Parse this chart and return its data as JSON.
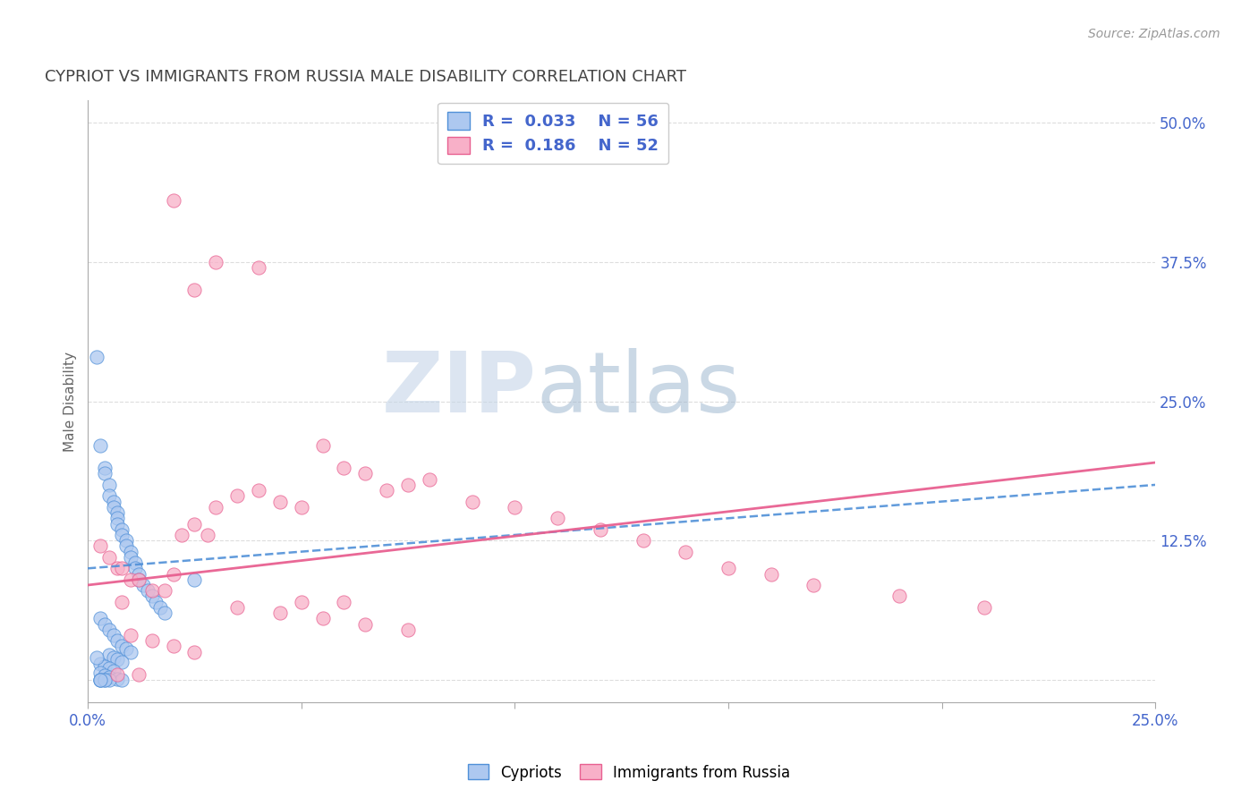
{
  "title": "CYPRIOT VS IMMIGRANTS FROM RUSSIA MALE DISABILITY CORRELATION CHART",
  "source": "Source: ZipAtlas.com",
  "ylabel": "Male Disability",
  "xlim": [
    0.0,
    0.25
  ],
  "ylim": [
    -0.02,
    0.52
  ],
  "xtick_positions": [
    0.0,
    0.05,
    0.1,
    0.15,
    0.2,
    0.25
  ],
  "xtick_labels": [
    "0.0%",
    "",
    "",
    "",
    "",
    "25.0%"
  ],
  "ytick_positions": [
    0.0,
    0.125,
    0.25,
    0.375,
    0.5
  ],
  "ytick_labels": [
    "",
    "12.5%",
    "25.0%",
    "37.5%",
    "50.0%"
  ],
  "legend_r1": "R =  0.033",
  "legend_n1": "N = 56",
  "legend_r2": "R =  0.186",
  "legend_n2": "N = 52",
  "color_cypriot_fill": "#adc8f0",
  "color_cypriot_edge": "#5090d8",
  "color_russia_fill": "#f8b0c8",
  "color_russia_edge": "#e86090",
  "color_line_cypriot": "#5090d8",
  "color_line_russia": "#e86090",
  "color_text_blue": "#4466cc",
  "color_title": "#444444",
  "color_source": "#999999",
  "background": "#ffffff",
  "watermark_zip": "ZIP",
  "watermark_atlas": "atlas",
  "grid_color": "#dddddd",
  "cypriot_x": [
    0.002,
    0.003,
    0.004,
    0.004,
    0.005,
    0.005,
    0.006,
    0.006,
    0.007,
    0.007,
    0.007,
    0.008,
    0.008,
    0.009,
    0.009,
    0.01,
    0.01,
    0.011,
    0.011,
    0.012,
    0.012,
    0.013,
    0.014,
    0.015,
    0.016,
    0.017,
    0.018,
    0.003,
    0.004,
    0.005,
    0.006,
    0.007,
    0.008,
    0.009,
    0.01,
    0.005,
    0.006,
    0.007,
    0.008,
    0.003,
    0.004,
    0.005,
    0.006,
    0.003,
    0.004,
    0.005,
    0.007,
    0.008,
    0.003,
    0.004,
    0.005,
    0.003,
    0.004,
    0.003,
    0.025,
    0.002
  ],
  "cypriot_y": [
    0.29,
    0.21,
    0.19,
    0.185,
    0.175,
    0.165,
    0.16,
    0.155,
    0.15,
    0.145,
    0.14,
    0.135,
    0.13,
    0.125,
    0.12,
    0.115,
    0.11,
    0.105,
    0.1,
    0.095,
    0.09,
    0.085,
    0.08,
    0.075,
    0.07,
    0.065,
    0.06,
    0.055,
    0.05,
    0.045,
    0.04,
    0.035,
    0.03,
    0.028,
    0.025,
    0.022,
    0.02,
    0.018,
    0.016,
    0.014,
    0.012,
    0.01,
    0.008,
    0.006,
    0.004,
    0.002,
    0.001,
    0.0,
    0.0,
    0.0,
    0.0,
    0.0,
    0.0,
    0.0,
    0.09,
    0.02
  ],
  "russia_x": [
    0.003,
    0.005,
    0.007,
    0.008,
    0.01,
    0.012,
    0.015,
    0.018,
    0.02,
    0.022,
    0.025,
    0.028,
    0.03,
    0.035,
    0.04,
    0.045,
    0.05,
    0.055,
    0.06,
    0.065,
    0.07,
    0.075,
    0.08,
    0.09,
    0.1,
    0.11,
    0.12,
    0.13,
    0.14,
    0.15,
    0.16,
    0.17,
    0.19,
    0.21,
    0.02,
    0.025,
    0.03,
    0.04,
    0.05,
    0.06,
    0.035,
    0.045,
    0.055,
    0.065,
    0.075,
    0.01,
    0.015,
    0.02,
    0.025,
    0.007,
    0.012,
    0.008
  ],
  "russia_y": [
    0.12,
    0.11,
    0.1,
    0.1,
    0.09,
    0.09,
    0.08,
    0.08,
    0.095,
    0.13,
    0.14,
    0.13,
    0.155,
    0.165,
    0.17,
    0.16,
    0.155,
    0.21,
    0.19,
    0.185,
    0.17,
    0.175,
    0.18,
    0.16,
    0.155,
    0.145,
    0.135,
    0.125,
    0.115,
    0.1,
    0.095,
    0.085,
    0.075,
    0.065,
    0.43,
    0.35,
    0.375,
    0.37,
    0.07,
    0.07,
    0.065,
    0.06,
    0.055,
    0.05,
    0.045,
    0.04,
    0.035,
    0.03,
    0.025,
    0.005,
    0.005,
    0.07
  ]
}
